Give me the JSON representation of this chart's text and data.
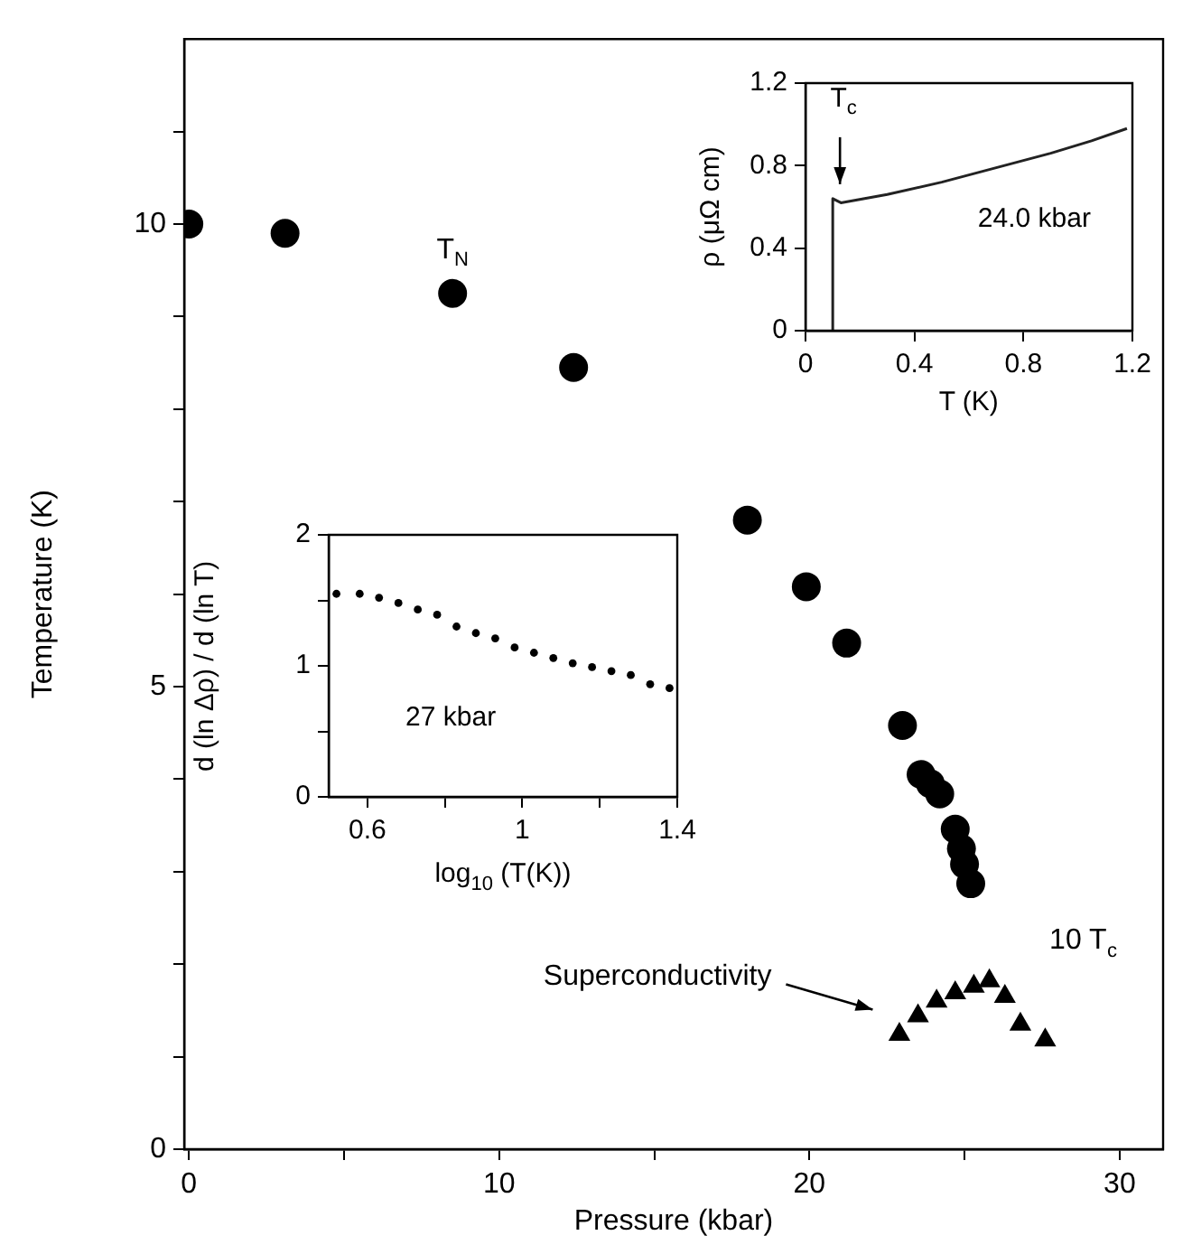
{
  "chart_data": [
    {
      "type": "scatter",
      "xlabel": "Pressure (kbar)",
      "ylabel": "Temperature (K)",
      "xlim": [
        -0.15,
        31.4
      ],
      "ylim": [
        0,
        12
      ],
      "xticks": [
        0,
        {
          "value": 5,
          "label": null
        },
        10,
        {
          "value": 15,
          "label": null
        },
        20,
        {
          "value": 25,
          "label": null
        },
        30
      ],
      "yticks": [
        0,
        {
          "value": 1,
          "label": null
        },
        {
          "value": 2,
          "label": null
        },
        {
          "value": 3,
          "label": null
        },
        {
          "value": 4,
          "label": null
        },
        5,
        {
          "value": 6,
          "label": null
        },
        {
          "value": 7,
          "label": null
        },
        {
          "value": 8,
          "label": null
        },
        {
          "value": 9,
          "label": null
        },
        10,
        {
          "value": 11,
          "label": null
        }
      ],
      "grid": false,
      "series": [
        {
          "name": "T$_{N}$",
          "color": "#000000",
          "marker": "circle",
          "x": [
            0,
            3.1,
            8.5,
            12.4,
            18.0,
            19.9,
            21.2,
            23.0,
            23.6,
            23.9,
            24.2,
            24.7,
            24.9,
            25.0,
            25.2
          ],
          "values": [
            10.0,
            9.9,
            9.25,
            8.45,
            6.8,
            6.08,
            5.47,
            4.58,
            4.05,
            3.95,
            3.84,
            3.46,
            3.25,
            3.08,
            2.87
          ]
        },
        {
          "name": "10 T$_{c}$",
          "color": "#000000",
          "marker": "triangle",
          "x": [
            22.9,
            23.5,
            24.1,
            24.7,
            25.3,
            25.8,
            26.3,
            26.8,
            27.6
          ],
          "values": [
            1.24,
            1.44,
            1.6,
            1.69,
            1.76,
            1.82,
            1.65,
            1.35,
            1.18
          ]
        }
      ],
      "annotations": [
        "Superconductivity"
      ]
    },
    {
      "type": "line",
      "xlabel": "T (K)",
      "ylabel": "ρ (μΩ cm)",
      "xlim": [
        0,
        1.2
      ],
      "ylim": [
        0,
        1.2
      ],
      "xticks": [
        0,
        0.4,
        0.8,
        1.2
      ],
      "yticks": [
        0,
        0.4,
        0.8,
        1.2
      ],
      "grid": false,
      "marker": "none",
      "series": [
        {
          "color": "#222222",
          "x": [
            0.1,
            0.1,
            0.13,
            0.3,
            0.5,
            0.7,
            0.9,
            1.05,
            1.18
          ],
          "values": [
            0,
            0.64,
            0.62,
            0.66,
            0.72,
            0.79,
            0.86,
            0.92,
            0.98
          ]
        }
      ],
      "annotations": [
        {
          "text": "T$_{c}$",
          "x": 0.1,
          "y": 0.64
        },
        "24.0 kbar"
      ]
    },
    {
      "type": "scatter",
      "xlabel": "log$_{10}$ (T(K))",
      "ylabel": "d (ln Δρ) / d (ln T)",
      "xlim": [
        0.5,
        1.4
      ],
      "ylim": [
        0,
        2
      ],
      "xticks": [
        0.6,
        {
          "value": 0.8,
          "label": null
        },
        1,
        {
          "value": 1.2,
          "label": null
        },
        1.4
      ],
      "yticks": [
        0,
        {
          "value": 0.5,
          "label": null
        },
        1,
        {
          "value": 1.5,
          "label": null
        },
        2
      ],
      "grid": false,
      "marker": "circle",
      "series": [
        {
          "color": "#000000",
          "x": [
            0.52,
            0.58,
            0.63,
            0.68,
            0.73,
            0.78,
            0.83,
            0.88,
            0.93,
            0.98,
            1.03,
            1.08,
            1.13,
            1.18,
            1.23,
            1.28,
            1.33,
            1.38
          ],
          "values": [
            1.55,
            1.55,
            1.52,
            1.48,
            1.43,
            1.39,
            1.3,
            1.25,
            1.21,
            1.14,
            1.1,
            1.06,
            1.02,
            0.99,
            0.96,
            0.93,
            0.86,
            0.83
          ]
        }
      ],
      "annotations": [
        "27 kbar"
      ]
    }
  ]
}
